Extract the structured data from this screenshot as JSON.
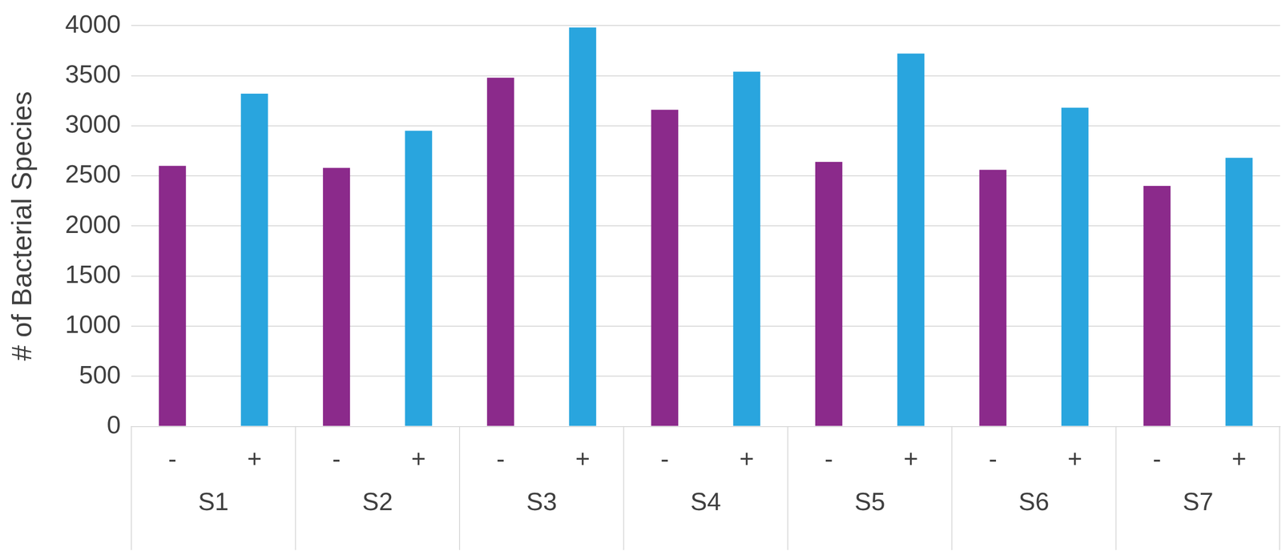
{
  "chart_data": {
    "type": "bar",
    "y_label": "# of Bacterial Species",
    "categories": [
      "-",
      "+",
      "-",
      "+",
      "-",
      "+",
      "-",
      "+",
      "-",
      "+",
      "-",
      "+",
      "-",
      "+"
    ],
    "groups": [
      "S1",
      "S2",
      "S3",
      "S4",
      "S5",
      "S6",
      "S7"
    ],
    "values": [
      2600,
      3320,
      2580,
      2950,
      3480,
      3980,
      3160,
      3540,
      2640,
      3720,
      2560,
      3180,
      2400,
      2680
    ],
    "colors": [
      "#8b2a8b",
      "#29a5de",
      "#8b2a8b",
      "#29a5de",
      "#8b2a8b",
      "#29a5de",
      "#8b2a8b",
      "#29a5de",
      "#8b2a8b",
      "#29a5de",
      "#8b2a8b",
      "#29a5de",
      "#8b2a8b",
      "#29a5de"
    ],
    "ylim": [
      0,
      4000
    ],
    "yticks": [
      0,
      500,
      1000,
      1500,
      2000,
      2500,
      3000,
      3500,
      4000
    ],
    "grid": true
  }
}
